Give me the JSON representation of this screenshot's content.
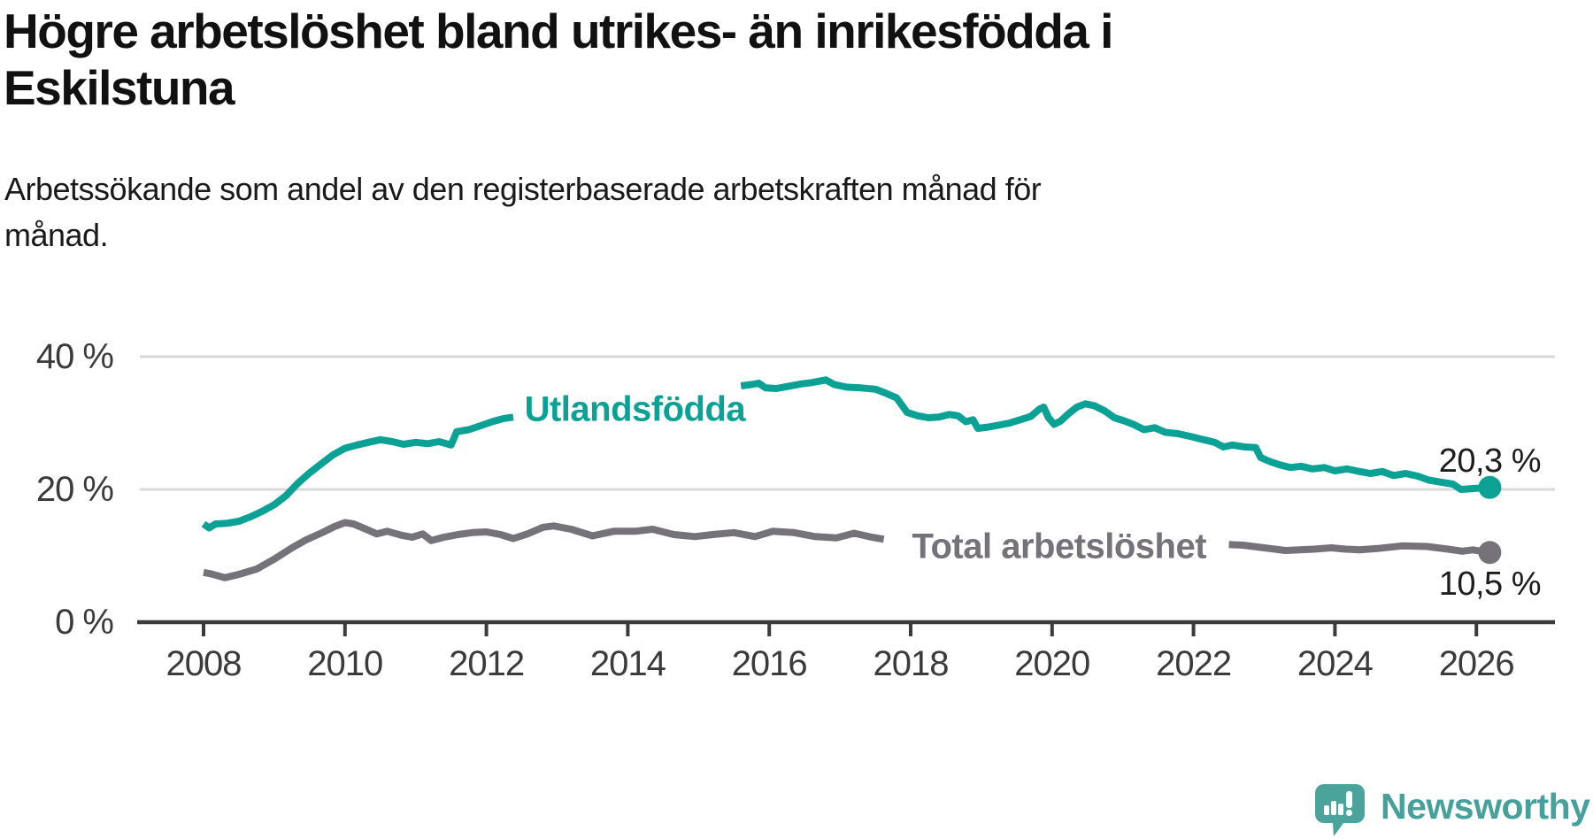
{
  "title": "Högre arbetslöshet bland utrikes- än inrikesfödda i\nEskilstuna",
  "subtitle": "Arbetssökande som andel av den registerbaserade arbetskraften månad för\nmånad.",
  "logo": {
    "text": "Newsworthy"
  },
  "colors": {
    "teal": "#0BA295",
    "gray": "#75727A",
    "axis": "#3B3B3B",
    "gridline": "#D9D9D9",
    "value_label": "#1D1D1D",
    "logo_teal": "#46A19A",
    "background": "#FFFFFF"
  },
  "chart_data": {
    "type": "line",
    "unit": "%",
    "grid": "horizontal-only",
    "x_axis": {
      "ticks": [
        2008,
        2010,
        2012,
        2014,
        2016,
        2018,
        2020,
        2022,
        2024,
        2026
      ],
      "range": [
        2007.8,
        2027.2
      ]
    },
    "y_axis": {
      "ticks": [
        {
          "value": 0,
          "label": "0 %"
        },
        {
          "value": 20,
          "label": "20 %"
        },
        {
          "value": 40,
          "label": "40 %"
        }
      ],
      "gridlines": [
        20,
        40
      ],
      "range": [
        0,
        44
      ]
    },
    "series": [
      {
        "id": "utlandsfodda",
        "label": "Utlandsfödda",
        "color": "#0BA295",
        "end_value": 20.3,
        "end_label": "20,3 %",
        "label_anchor": {
          "year": 2014.1,
          "value": 32.0
        },
        "segments": [
          [
            [
              2008.0,
              14.8
            ],
            [
              2008.08,
              14.2
            ],
            [
              2008.17,
              14.8
            ],
            [
              2008.33,
              14.9
            ],
            [
              2008.5,
              15.2
            ],
            [
              2008.67,
              15.9
            ],
            [
              2008.83,
              16.7
            ],
            [
              2009.0,
              17.7
            ],
            [
              2009.17,
              19.1
            ],
            [
              2009.33,
              20.9
            ],
            [
              2009.5,
              22.5
            ],
            [
              2009.67,
              23.9
            ],
            [
              2009.83,
              25.2
            ],
            [
              2010.0,
              26.2
            ],
            [
              2010.17,
              26.7
            ],
            [
              2010.33,
              27.1
            ],
            [
              2010.5,
              27.5
            ],
            [
              2010.67,
              27.2
            ],
            [
              2010.83,
              26.8
            ],
            [
              2011.0,
              27.1
            ],
            [
              2011.17,
              26.9
            ],
            [
              2011.33,
              27.2
            ],
            [
              2011.5,
              26.7
            ],
            [
              2011.58,
              28.7
            ],
            [
              2011.75,
              29.0
            ],
            [
              2011.92,
              29.6
            ],
            [
              2012.08,
              30.2
            ],
            [
              2012.25,
              30.7
            ],
            [
              2012.38,
              30.9
            ]
          ],
          [
            [
              2015.6,
              35.6
            ],
            [
              2015.75,
              35.8
            ],
            [
              2015.85,
              36.0
            ],
            [
              2015.95,
              35.3
            ],
            [
              2016.1,
              35.2
            ],
            [
              2016.25,
              35.5
            ],
            [
              2016.45,
              35.9
            ],
            [
              2016.6,
              36.1
            ],
            [
              2016.8,
              36.5
            ],
            [
              2016.92,
              35.8
            ],
            [
              2017.1,
              35.4
            ],
            [
              2017.3,
              35.3
            ],
            [
              2017.5,
              35.1
            ],
            [
              2017.65,
              34.5
            ],
            [
              2017.8,
              33.8
            ],
            [
              2017.95,
              31.6
            ],
            [
              2018.1,
              31.1
            ],
            [
              2018.25,
              30.8
            ],
            [
              2018.4,
              30.9
            ],
            [
              2018.55,
              31.3
            ],
            [
              2018.67,
              31.1
            ],
            [
              2018.78,
              30.2
            ],
            [
              2018.88,
              30.5
            ],
            [
              2018.95,
              29.2
            ],
            [
              2019.1,
              29.4
            ],
            [
              2019.25,
              29.7
            ],
            [
              2019.4,
              30.0
            ],
            [
              2019.55,
              30.5
            ],
            [
              2019.7,
              31.0
            ],
            [
              2019.82,
              32.1
            ],
            [
              2019.88,
              32.4
            ],
            [
              2019.95,
              30.8
            ],
            [
              2020.03,
              29.8
            ],
            [
              2020.12,
              30.3
            ],
            [
              2020.22,
              31.3
            ],
            [
              2020.35,
              32.4
            ],
            [
              2020.47,
              32.9
            ],
            [
              2020.6,
              32.6
            ],
            [
              2020.75,
              31.8
            ],
            [
              2020.88,
              30.8
            ],
            [
              2021.0,
              30.4
            ],
            [
              2021.15,
              29.8
            ],
            [
              2021.3,
              29.0
            ],
            [
              2021.45,
              29.3
            ],
            [
              2021.6,
              28.6
            ],
            [
              2021.78,
              28.4
            ],
            [
              2021.95,
              28.0
            ],
            [
              2022.1,
              27.6
            ],
            [
              2022.3,
              27.1
            ],
            [
              2022.42,
              26.4
            ],
            [
              2022.55,
              26.7
            ],
            [
              2022.72,
              26.4
            ],
            [
              2022.88,
              26.3
            ],
            [
              2022.95,
              24.8
            ],
            [
              2023.08,
              24.2
            ],
            [
              2023.22,
              23.7
            ],
            [
              2023.37,
              23.3
            ],
            [
              2023.52,
              23.5
            ],
            [
              2023.68,
              23.1
            ],
            [
              2023.85,
              23.3
            ],
            [
              2024.0,
              22.8
            ],
            [
              2024.17,
              23.1
            ],
            [
              2024.35,
              22.7
            ],
            [
              2024.5,
              22.4
            ],
            [
              2024.67,
              22.7
            ],
            [
              2024.83,
              22.1
            ],
            [
              2025.0,
              22.4
            ],
            [
              2025.17,
              22.0
            ],
            [
              2025.33,
              21.4
            ],
            [
              2025.5,
              21.1
            ],
            [
              2025.67,
              20.8
            ],
            [
              2025.78,
              20.0
            ],
            [
              2025.92,
              20.1
            ],
            [
              2026.05,
              20.2
            ],
            [
              2026.19,
              20.3
            ]
          ]
        ]
      },
      {
        "id": "total",
        "label": "Total arbetslöshet",
        "color": "#75727A",
        "end_value": 10.5,
        "end_label": "10,5 %",
        "label_anchor": {
          "year": 2020.1,
          "value": 11.4
        },
        "segments": [
          [
            [
              2008.0,
              7.5
            ],
            [
              2008.1,
              7.3
            ],
            [
              2008.3,
              6.7
            ],
            [
              2008.5,
              7.2
            ],
            [
              2008.75,
              8.0
            ],
            [
              2009.0,
              9.5
            ],
            [
              2009.25,
              11.2
            ],
            [
              2009.45,
              12.4
            ],
            [
              2009.7,
              13.6
            ],
            [
              2009.85,
              14.4
            ],
            [
              2010.0,
              15.0
            ],
            [
              2010.12,
              14.8
            ],
            [
              2010.3,
              14.0
            ],
            [
              2010.45,
              13.3
            ],
            [
              2010.6,
              13.7
            ],
            [
              2010.8,
              13.1
            ],
            [
              2010.95,
              12.8
            ],
            [
              2011.1,
              13.3
            ],
            [
              2011.22,
              12.3
            ],
            [
              2011.4,
              12.8
            ],
            [
              2011.6,
              13.2
            ],
            [
              2011.8,
              13.5
            ],
            [
              2012.0,
              13.6
            ],
            [
              2012.2,
              13.2
            ],
            [
              2012.38,
              12.6
            ],
            [
              2012.58,
              13.3
            ],
            [
              2012.8,
              14.3
            ],
            [
              2012.95,
              14.5
            ],
            [
              2013.2,
              14.0
            ],
            [
              2013.5,
              13.0
            ],
            [
              2013.8,
              13.7
            ],
            [
              2014.1,
              13.7
            ],
            [
              2014.35,
              14.0
            ],
            [
              2014.65,
              13.2
            ],
            [
              2014.95,
              12.9
            ],
            [
              2015.2,
              13.2
            ],
            [
              2015.5,
              13.5
            ],
            [
              2015.8,
              12.9
            ],
            [
              2016.05,
              13.7
            ],
            [
              2016.35,
              13.5
            ],
            [
              2016.65,
              12.9
            ],
            [
              2016.95,
              12.7
            ],
            [
              2017.2,
              13.4
            ],
            [
              2017.45,
              12.8
            ],
            [
              2017.62,
              12.5
            ]
          ],
          [
            [
              2022.5,
              11.7
            ],
            [
              2022.7,
              11.6
            ],
            [
              2022.85,
              11.4
            ],
            [
              2023.0,
              11.2
            ],
            [
              2023.15,
              11.0
            ],
            [
              2023.3,
              10.8
            ],
            [
              2023.5,
              10.9
            ],
            [
              2023.7,
              11.0
            ],
            [
              2023.95,
              11.2
            ],
            [
              2024.15,
              11.0
            ],
            [
              2024.35,
              10.9
            ],
            [
              2024.6,
              11.1
            ],
            [
              2024.95,
              11.5
            ],
            [
              2025.3,
              11.4
            ],
            [
              2025.6,
              11.0
            ],
            [
              2025.8,
              10.7
            ],
            [
              2025.95,
              10.9
            ],
            [
              2026.19,
              10.5
            ]
          ]
        ]
      }
    ]
  }
}
